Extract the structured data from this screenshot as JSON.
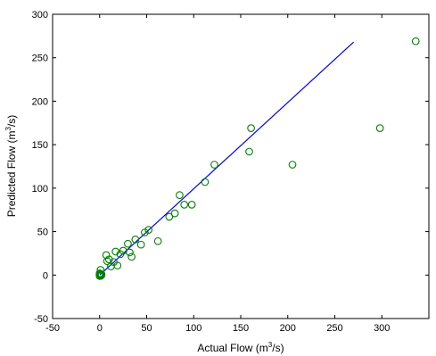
{
  "chart_data": {
    "type": "scatter",
    "title": "",
    "xlabel": "Actual Flow (m",
    "xlabel_sup": "3",
    "xlabel_tail": "/s)",
    "ylabel": "Predicted Flow (m",
    "ylabel_sup": "3",
    "ylabel_tail": "/s)",
    "xlim": [
      -50,
      350
    ],
    "ylim": [
      -50,
      300
    ],
    "xticks": [
      -50,
      0,
      50,
      100,
      150,
      200,
      250,
      300
    ],
    "yticks": [
      -50,
      0,
      50,
      100,
      150,
      200,
      250,
      300
    ],
    "grid": false,
    "legend": "none",
    "series": [
      {
        "kind": "markers",
        "marker": "open-circle",
        "color": "#008000",
        "points": [
          [
            0,
            0
          ],
          [
            0,
            1
          ],
          [
            0,
            2
          ],
          [
            1,
            0
          ],
          [
            1,
            1
          ],
          [
            2,
            0
          ],
          [
            2,
            1
          ],
          [
            1,
            -1
          ],
          [
            0,
            -1
          ],
          [
            1,
            6
          ],
          [
            7,
            23
          ],
          [
            8,
            16
          ],
          [
            10,
            18
          ],
          [
            12,
            10
          ],
          [
            15,
            15
          ],
          [
            17,
            27
          ],
          [
            19,
            11
          ],
          [
            22,
            24
          ],
          [
            25,
            28
          ],
          [
            30,
            36
          ],
          [
            32,
            26
          ],
          [
            34,
            21
          ],
          [
            38,
            41
          ],
          [
            44,
            35
          ],
          [
            48,
            49
          ],
          [
            52,
            52
          ],
          [
            62,
            39
          ],
          [
            74,
            67
          ],
          [
            80,
            71
          ],
          [
            85,
            92
          ],
          [
            90,
            81
          ],
          [
            98,
            81
          ],
          [
            112,
            107
          ],
          [
            122,
            127
          ],
          [
            159,
            142
          ],
          [
            161,
            169
          ],
          [
            205,
            127
          ],
          [
            298,
            169
          ],
          [
            336,
            269
          ]
        ]
      },
      {
        "kind": "line",
        "color": "#0000ff",
        "points": [
          [
            0,
            0
          ],
          [
            270,
            268
          ]
        ]
      }
    ]
  }
}
